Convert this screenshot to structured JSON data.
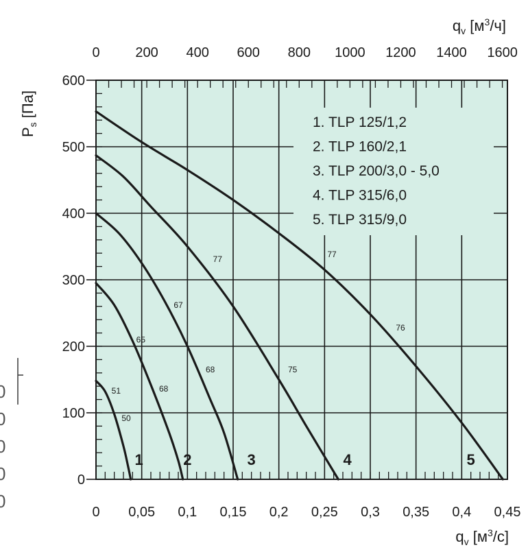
{
  "chart_data": {
    "type": "line",
    "title": "",
    "xlabel": "qv [м3/с]",
    "x2label": "qv [м3/ч]",
    "ylabel": "Ps [Па]",
    "xlim": [
      0,
      0.45
    ],
    "x2lim": [
      0,
      1620
    ],
    "ylim": [
      0,
      600
    ],
    "x_ticks": [
      "0",
      "0,05",
      "0,1",
      "0,15",
      "0,2",
      "0,25",
      "0,3",
      "0,35",
      "0,4",
      "0,45"
    ],
    "x_tick_values": [
      0,
      0.05,
      0.1,
      0.15,
      0.2,
      0.25,
      0.3,
      0.35,
      0.4,
      0.45
    ],
    "x2_ticks": [
      "0",
      "200",
      "400",
      "600",
      "800",
      "1000",
      "1200",
      "1400",
      "1600"
    ],
    "x2_tick_values": [
      0,
      200,
      400,
      600,
      800,
      1000,
      1200,
      1400,
      1600
    ],
    "y_ticks": [
      "0",
      "100",
      "200",
      "300",
      "400",
      "500",
      "600"
    ],
    "y_tick_values": [
      0,
      100,
      200,
      300,
      400,
      500,
      600
    ],
    "grid": true,
    "background": "#d6eee6",
    "line_color": "#1a1a1a",
    "legend_position": "top-right",
    "legend": [
      "1. TLP 125/1,2",
      "2. TLP 160/2,1",
      "3. TLP 200/3,0 - 5,0",
      "4. TLP 315/6,0",
      "5. TLP 315/9,0"
    ],
    "series": [
      {
        "label": "1",
        "x": [
          0,
          0.01,
          0.02,
          0.03,
          0.035,
          0.038
        ],
        "y": [
          148,
          132,
          98,
          50,
          20,
          0
        ],
        "label_at": [
          0.047,
          30
        ]
      },
      {
        "label": "2",
        "x": [
          0,
          0.02,
          0.04,
          0.06,
          0.08,
          0.09,
          0.095
        ],
        "y": [
          295,
          262,
          208,
          142,
          70,
          28,
          0
        ],
        "label_at": [
          0.1,
          30
        ]
      },
      {
        "label": "3",
        "x": [
          0,
          0.025,
          0.05,
          0.075,
          0.1,
          0.125,
          0.14,
          0.155
        ],
        "y": [
          400,
          370,
          325,
          268,
          200,
          120,
          70,
          0
        ],
        "label_at": [
          0.17,
          30
        ]
      },
      {
        "label": "4",
        "x": [
          0,
          0.03,
          0.06,
          0.1,
          0.15,
          0.2,
          0.23,
          0.265
        ],
        "y": [
          487,
          455,
          410,
          350,
          260,
          150,
          80,
          0
        ],
        "label_at": [
          0.275,
          30
        ]
      },
      {
        "label": "5",
        "x": [
          0,
          0.05,
          0.1,
          0.15,
          0.2,
          0.25,
          0.3,
          0.35,
          0.4,
          0.445
        ],
        "y": [
          553,
          507,
          465,
          420,
          370,
          315,
          248,
          170,
          85,
          0
        ],
        "label_at": [
          0.41,
          30
        ]
      }
    ],
    "annotations": [
      {
        "text": "51",
        "x": 0.022,
        "y": 133
      },
      {
        "text": "50",
        "x": 0.033,
        "y": 92
      },
      {
        "text": "65",
        "x": 0.049,
        "y": 210
      },
      {
        "text": "68",
        "x": 0.074,
        "y": 136
      },
      {
        "text": "67",
        "x": 0.09,
        "y": 262
      },
      {
        "text": "68",
        "x": 0.125,
        "y": 165
      },
      {
        "text": "77",
        "x": 0.133,
        "y": 331
      },
      {
        "text": "75",
        "x": 0.215,
        "y": 165
      },
      {
        "text": "77",
        "x": 0.258,
        "y": 338
      },
      {
        "text": "76",
        "x": 0.333,
        "y": 228
      }
    ]
  },
  "edge_fragments": [
    "0",
    "0",
    "0",
    "0",
    "0"
  ]
}
